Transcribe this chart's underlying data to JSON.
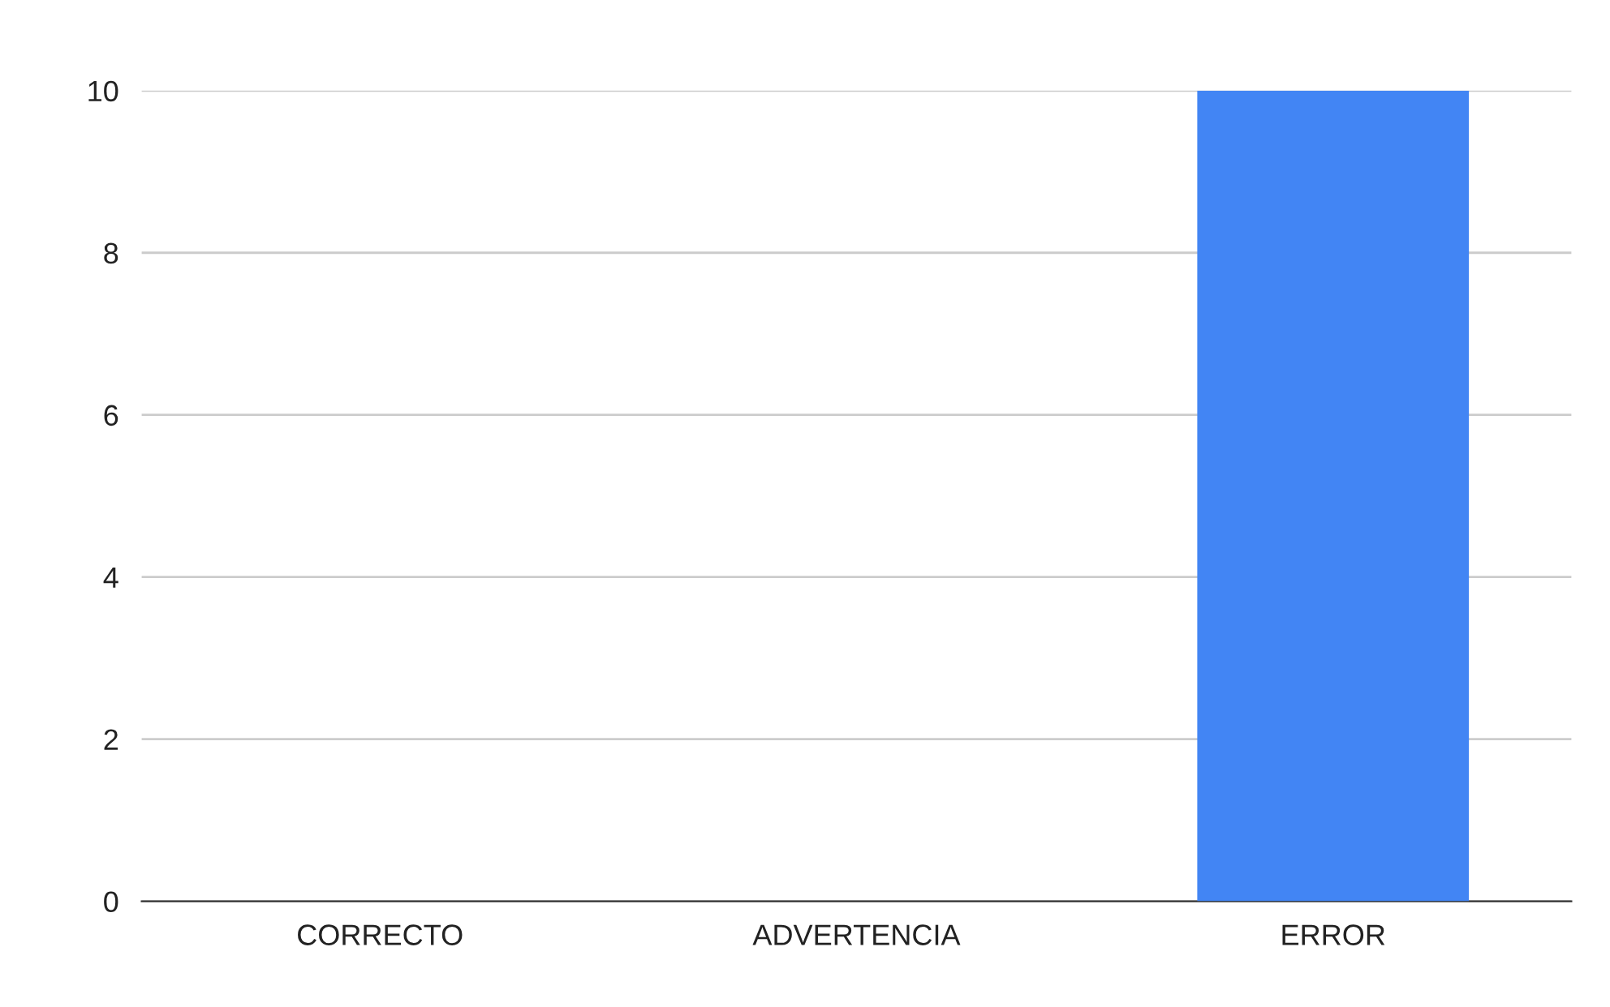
{
  "chart_data": {
    "type": "bar",
    "categories": [
      "CORRECTO",
      "ADVERTENCIA",
      "ERROR"
    ],
    "values": [
      0,
      0,
      10
    ],
    "color": "#4285f4",
    "ylim": [
      0,
      10
    ],
    "yticks": [
      0,
      2,
      4,
      6,
      8,
      10
    ],
    "grid": "y",
    "legend": false
  }
}
